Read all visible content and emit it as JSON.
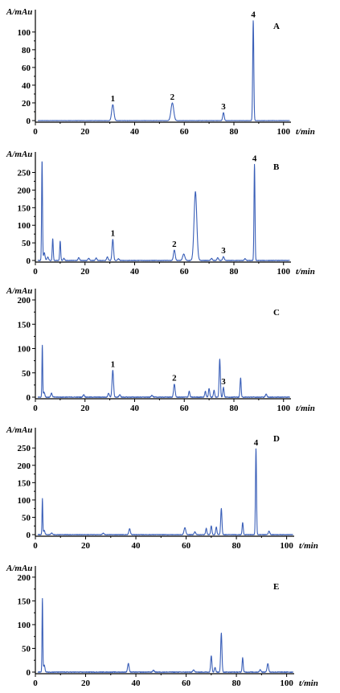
{
  "chart_data": [
    {
      "type": "line",
      "panel_label": "A",
      "ylabel": "A/mAu",
      "xlabel": "t/min",
      "xlim": [
        0,
        103
      ],
      "ylim": [
        -3,
        118
      ],
      "xticks": [
        0,
        20,
        40,
        60,
        80,
        100
      ],
      "yticks": [
        0,
        20,
        40,
        60,
        80,
        100
      ],
      "baseline_noise": 0.3,
      "peaks": [
        {
          "t": 31.2,
          "h": 18,
          "w": 0.45,
          "label": "1"
        },
        {
          "t": 55.2,
          "h": 20,
          "w": 0.55,
          "label": "2"
        },
        {
          "t": 75.8,
          "h": 9,
          "w": 0.3,
          "label": "3"
        },
        {
          "t": 87.8,
          "h": 113,
          "w": 0.22,
          "label": "4"
        }
      ]
    },
    {
      "type": "line",
      "panel_label": "B",
      "ylabel": "A/mAu",
      "xlabel": "t/min",
      "xlim": [
        0,
        103
      ],
      "ylim": [
        -5,
        290
      ],
      "xticks": [
        0,
        20,
        40,
        60,
        80,
        100
      ],
      "yticks": [
        0,
        50,
        100,
        150,
        200,
        250
      ],
      "baseline_noise": 1.5,
      "peaks": [
        {
          "t": 2.7,
          "h": 285,
          "w": 0.18
        },
        {
          "t": 3.6,
          "h": 22,
          "w": 0.3
        },
        {
          "t": 5.0,
          "h": 10,
          "w": 0.3
        },
        {
          "t": 7.0,
          "h": 62,
          "w": 0.2
        },
        {
          "t": 10.0,
          "h": 55,
          "w": 0.2
        },
        {
          "t": 11.5,
          "h": 6,
          "w": 0.3
        },
        {
          "t": 17.5,
          "h": 8,
          "w": 0.3
        },
        {
          "t": 21.5,
          "h": 6,
          "w": 0.3
        },
        {
          "t": 24.5,
          "h": 7,
          "w": 0.3
        },
        {
          "t": 29.0,
          "h": 10,
          "w": 0.3
        },
        {
          "t": 31.2,
          "h": 60,
          "w": 0.3,
          "label": "1"
        },
        {
          "t": 33.5,
          "h": 5,
          "w": 0.3
        },
        {
          "t": 56.0,
          "h": 30,
          "w": 0.35,
          "label": "2"
        },
        {
          "t": 59.8,
          "h": 18,
          "w": 0.45
        },
        {
          "t": 64.5,
          "h": 195,
          "w": 0.55
        },
        {
          "t": 71.0,
          "h": 6,
          "w": 0.3
        },
        {
          "t": 73.5,
          "h": 8,
          "w": 0.3
        },
        {
          "t": 75.8,
          "h": 11,
          "w": 0.3,
          "label": "3"
        },
        {
          "t": 84.5,
          "h": 5,
          "w": 0.3
        },
        {
          "t": 88.3,
          "h": 273,
          "w": 0.2,
          "label": "4"
        }
      ]
    },
    {
      "type": "line",
      "panel_label": "C",
      "ylabel": "A/mAu",
      "xlabel": "t/min",
      "xlim": [
        0,
        103
      ],
      "ylim": [
        -5,
        210
      ],
      "xticks": [
        0,
        20,
        40,
        60,
        80,
        100
      ],
      "yticks": [
        0,
        50,
        100,
        150,
        200
      ],
      "baseline_noise": 1.5,
      "peaks": [
        {
          "t": 2.8,
          "h": 107,
          "w": 0.15
        },
        {
          "t": 3.5,
          "h": 10,
          "w": 0.3
        },
        {
          "t": 6.5,
          "h": 8,
          "w": 0.3
        },
        {
          "t": 19.5,
          "h": 5,
          "w": 0.3
        },
        {
          "t": 29.5,
          "h": 8,
          "w": 0.3
        },
        {
          "t": 31.2,
          "h": 55,
          "w": 0.3,
          "label": "1"
        },
        {
          "t": 34.0,
          "h": 5,
          "w": 0.3
        },
        {
          "t": 47.0,
          "h": 4,
          "w": 0.3
        },
        {
          "t": 56.0,
          "h": 27,
          "w": 0.3,
          "label": "2"
        },
        {
          "t": 62.0,
          "h": 12,
          "w": 0.25
        },
        {
          "t": 68.5,
          "h": 12,
          "w": 0.25
        },
        {
          "t": 70.0,
          "h": 18,
          "w": 0.25
        },
        {
          "t": 72.0,
          "h": 14,
          "w": 0.25
        },
        {
          "t": 74.3,
          "h": 78,
          "w": 0.25
        },
        {
          "t": 75.8,
          "h": 20,
          "w": 0.25,
          "label": "3"
        },
        {
          "t": 82.7,
          "h": 40,
          "w": 0.22
        },
        {
          "t": 93.0,
          "h": 6,
          "w": 0.3
        }
      ]
    },
    {
      "type": "line",
      "panel_label": "D",
      "ylabel": "A/mAu",
      "xlabel": "t/min",
      "xlim": [
        0,
        103
      ],
      "ylim": [
        -5,
        290
      ],
      "xticks": [
        0,
        20,
        40,
        60,
        80,
        100
      ],
      "yticks": [
        0,
        50,
        100,
        150,
        200,
        250
      ],
      "baseline_noise": 1.5,
      "peaks": [
        {
          "t": 2.8,
          "h": 103,
          "w": 0.15
        },
        {
          "t": 3.5,
          "h": 12,
          "w": 0.3
        },
        {
          "t": 6.5,
          "h": 5,
          "w": 0.3
        },
        {
          "t": 27.0,
          "h": 4,
          "w": 0.3
        },
        {
          "t": 37.5,
          "h": 17,
          "w": 0.3
        },
        {
          "t": 59.5,
          "h": 20,
          "w": 0.35
        },
        {
          "t": 63.5,
          "h": 8,
          "w": 0.3
        },
        {
          "t": 68.0,
          "h": 18,
          "w": 0.25
        },
        {
          "t": 70.0,
          "h": 25,
          "w": 0.25
        },
        {
          "t": 72.0,
          "h": 22,
          "w": 0.25
        },
        {
          "t": 74.0,
          "h": 75,
          "w": 0.25
        },
        {
          "t": 82.5,
          "h": 35,
          "w": 0.22
        },
        {
          "t": 87.8,
          "h": 248,
          "w": 0.2,
          "label": "4"
        },
        {
          "t": 93.0,
          "h": 10,
          "w": 0.3
        }
      ]
    },
    {
      "type": "line",
      "panel_label": "E",
      "ylabel": "A/mAu",
      "xlabel": "t/min",
      "xlim": [
        0,
        103
      ],
      "ylim": [
        -5,
        210
      ],
      "xticks": [
        0,
        20,
        40,
        60,
        80,
        100
      ],
      "yticks": [
        0,
        50,
        100,
        150,
        200
      ],
      "baseline_noise": 1.5,
      "peaks": [
        {
          "t": 2.8,
          "h": 155,
          "w": 0.15
        },
        {
          "t": 3.5,
          "h": 15,
          "w": 0.3
        },
        {
          "t": 37.0,
          "h": 18,
          "w": 0.3
        },
        {
          "t": 47.0,
          "h": 4,
          "w": 0.3
        },
        {
          "t": 63.0,
          "h": 5,
          "w": 0.3
        },
        {
          "t": 70.0,
          "h": 35,
          "w": 0.25
        },
        {
          "t": 71.5,
          "h": 10,
          "w": 0.25
        },
        {
          "t": 74.0,
          "h": 82,
          "w": 0.25
        },
        {
          "t": 82.5,
          "h": 30,
          "w": 0.22
        },
        {
          "t": 89.5,
          "h": 5,
          "w": 0.3
        },
        {
          "t": 92.5,
          "h": 18,
          "w": 0.3
        }
      ]
    }
  ],
  "style": {
    "trace_color": "#3a5fb8",
    "axis_color": "#000000"
  }
}
